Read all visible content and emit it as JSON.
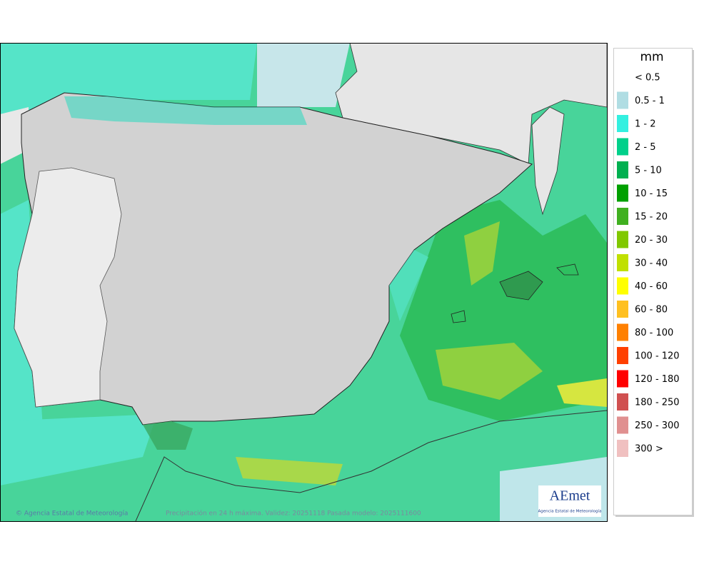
{
  "legend": {
    "title": "mm",
    "items": [
      {
        "label": "< 0.5",
        "color": "#ffffff"
      },
      {
        "label": "0.5 - 1",
        "color": "#b0dde3"
      },
      {
        "label": "1 - 2",
        "color": "#33f0e0"
      },
      {
        "label": "2 - 5",
        "color": "#00d08a"
      },
      {
        "label": "5 - 10",
        "color": "#00b050"
      },
      {
        "label": "10 - 15",
        "color": "#00a000"
      },
      {
        "label": "15 - 20",
        "color": "#40b020"
      },
      {
        "label": "20 - 30",
        "color": "#80c800"
      },
      {
        "label": "30 - 40",
        "color": "#c0e000"
      },
      {
        "label": "40 - 60",
        "color": "#ffff00"
      },
      {
        "label": "60 - 80",
        "color": "#ffc020"
      },
      {
        "label": "80 - 100",
        "color": "#ff8000"
      },
      {
        "label": "100 - 120",
        "color": "#ff4000"
      },
      {
        "label": "120 - 180",
        "color": "#ff0000"
      },
      {
        "label": "180 - 250",
        "color": "#d05050"
      },
      {
        "label": "250 - 300",
        "color": "#e09090"
      },
      {
        "label": "300 >",
        "color": "#f0c0c0"
      }
    ]
  },
  "footer": {
    "credit": "© Agencia Estatal de Meteorología",
    "caption": "Precipitación en 24 h máxima. Validez: 20251118 Pasada modelo: 2025111600"
  },
  "logo": {
    "name": "AEmet",
    "subtitle": "Agencia Estatal de Meteorología"
  }
}
